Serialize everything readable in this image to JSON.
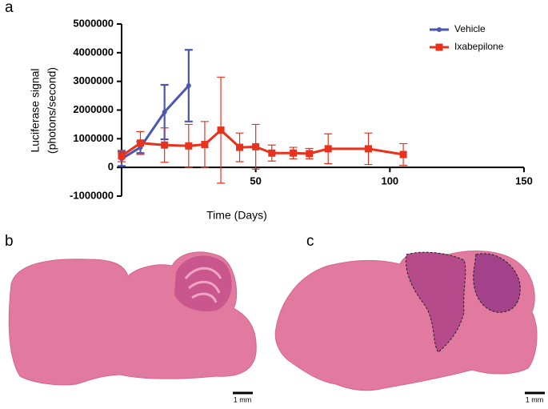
{
  "chart_data": {
    "type": "line",
    "x_label": "Time (Days)",
    "y_label": [
      "Luciferase signal",
      "(photons/second)"
    ],
    "xlim": [
      0,
      150
    ],
    "xticks": [
      50,
      100,
      150
    ],
    "ylim": [
      -1000000,
      5000000
    ],
    "yticks": [
      -1000000,
      0,
      1000000,
      2000000,
      3000000,
      4000000,
      5000000
    ],
    "legend": "top-right",
    "series": [
      {
        "name": "Vehicle",
        "color": "#4a55b5",
        "marker": "circle",
        "x": [
          0,
          7,
          16,
          25
        ],
        "values": [
          300000,
          700000,
          1930000,
          2850000
        ],
        "errors": [
          250000,
          200000,
          950000,
          1250000
        ]
      },
      {
        "name": "Ixabepilone",
        "color": "#e8321e",
        "marker": "square",
        "x": [
          0,
          7,
          16,
          25,
          31,
          37,
          44,
          50,
          56,
          64,
          70,
          77,
          92,
          105
        ],
        "values": [
          400000,
          850000,
          780000,
          750000,
          800000,
          1300000,
          700000,
          720000,
          500000,
          500000,
          480000,
          650000,
          650000,
          450000
        ],
        "errors": [
          200000,
          400000,
          600000,
          750000,
          800000,
          1850000,
          500000,
          780000,
          280000,
          200000,
          180000,
          520000,
          550000,
          380000
        ]
      }
    ]
  },
  "panels": [
    {
      "label": "a"
    },
    {
      "label": "b",
      "scale_bar": "1 mm"
    },
    {
      "label": "c",
      "scale_bar": "1 mm"
    }
  ]
}
